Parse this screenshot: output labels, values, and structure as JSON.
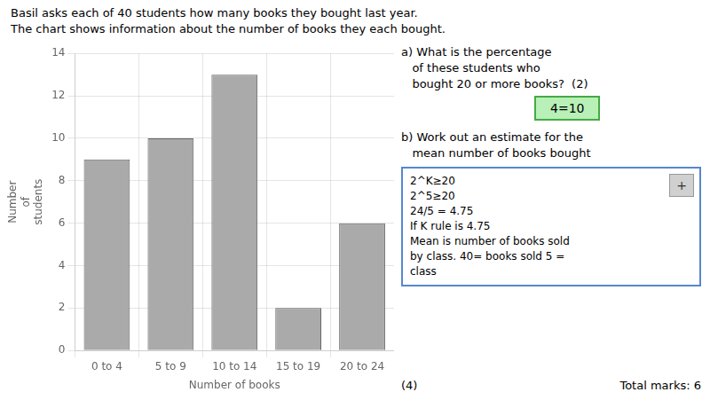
{
  "chart_data": {
    "type": "bar",
    "title": [
      "Basil asks each of 40 students how many books they bought last year.",
      "The chart shows information about the number of books they each bought."
    ],
    "categories": [
      "0 to 4",
      "5 to 9",
      "10 to 14",
      "15 to 19",
      "20 to 24"
    ],
    "values": [
      9,
      10,
      13,
      2,
      6
    ],
    "color": "#aaaaaa",
    "xlabel": "Number of books",
    "ylabel": "Number\nof\nstudents",
    "ylim": [
      0,
      14
    ],
    "yticks": [
      0,
      2,
      4,
      6,
      8,
      10,
      12,
      14
    ],
    "grid": true,
    "legend": false,
    "annotations": [
      [
        "a) What is the percentage",
        "   of these students who",
        "   bought 20 or more books?  (2)"
      ],
      [
        "4=10"
      ],
      [
        "b) Work out an estimate for the",
        "   mean number of books bought"
      ],
      [
        "2^K≥20",
        "2^5≥20",
        "24/5 = 4.75",
        "If K rule is 4.75",
        "Mean is number of books sold",
        "by class. 40= books sold 5 =",
        "class"
      ],
      [
        "+"
      ],
      [
        "(4)",
        "Total marks: 6"
      ]
    ]
  }
}
